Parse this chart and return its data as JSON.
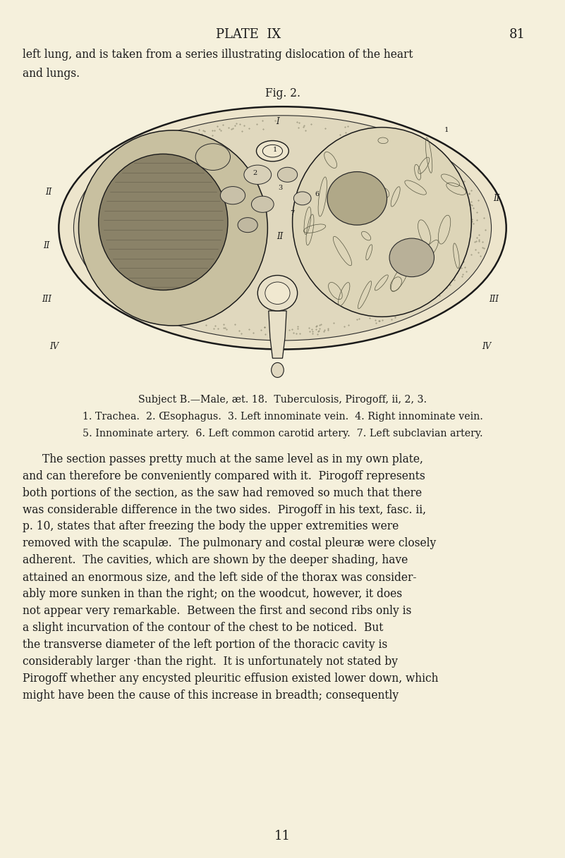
{
  "bg_color": "#f5f0dc",
  "page_title": "PLATE  IX",
  "page_number": "81",
  "line1": "left lung, and is taken from a series illustrating dislocation of the heart",
  "line2": "and lungs.",
  "fig_label": "Fig. 2.",
  "caption1": "Subject B.—Male, æt. 18.  Tuberculosis, Pirogoff, ii, 2, 3.",
  "caption2": "1. Trachea.  2. Œsophagus.  3. Left innominate vein.  4. Right innominate vein.",
  "caption3": "5. Innominate artery.  6. Left common carotid artery.  7. Left subclavian artery.",
  "bottom_number": "11",
  "title_fontsize": 13,
  "body_fontsize": 11.2,
  "caption_fontsize": 10.2,
  "para_lines": [
    "The section passes pretty much at the same level as in my own plate,",
    "and can therefore be conveniently compared with it.  Pirogoff represents",
    "both portions of the section, as the saw had removed so much that there",
    "was considerable difference in the two sides.  Pirogoff in his text, fasc. ii,",
    "p. 10, states that after freezing the body the upper extremities were",
    "removed with the scapulæ.  The pulmonary and costal pleuræ were closely",
    "adherent.  The cavities, which are shown by the deeper shading, have",
    "attained an enormous size, and the left side of the thorax was consider-",
    "ably more sunken in than the right; on the woodcut, however, it does",
    "not appear very remarkable.  Between the first and second ribs only is",
    "a slight incurvation of the contour of the chest to be noticed.  But",
    "the transverse diameter of the left portion of the thoracic cavity is",
    "considerably larger ·than the right.  It is unfortunately not stated by",
    "Pirogoff whether any encysted pleuritic effusion existed lower down, which",
    "might have been the cause of this increase in breadth; consequently"
  ]
}
